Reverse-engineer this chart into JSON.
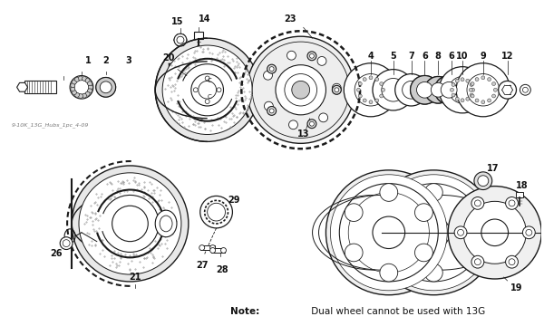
{
  "background_color": "#ffffff",
  "figure_width": 6.0,
  "figure_height": 3.6,
  "dpi": 100,
  "note_bold": "Note:",
  "note_rest": " Dual wheel cannot be used with 13G",
  "watermark": "9-10K_13G_Hubs_1pc_4-09",
  "line_color": "#1a1a1a",
  "text_color": "#111111",
  "label_fontsize": 7.0,
  "note_fontsize": 7.5,
  "watermark_fontsize": 4.5
}
